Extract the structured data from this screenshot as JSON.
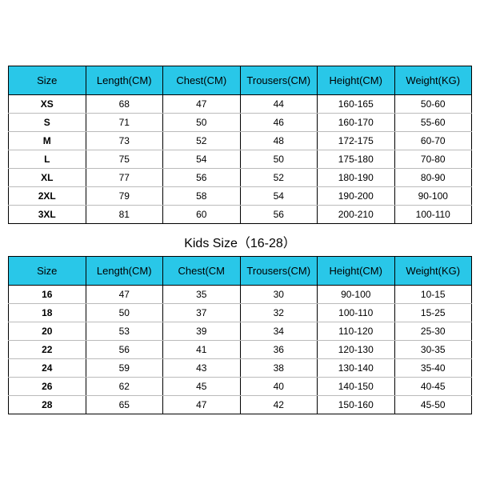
{
  "style": {
    "header_bg": "#29c7e8",
    "header_text": "#000000",
    "border_color": "#000000",
    "row_border": "#bbbbbb",
    "body_text": "#000000",
    "header_fontsize": 13,
    "cell_fontsize": 12,
    "title_fontsize": 16
  },
  "adult": {
    "columns": [
      "Size",
      "Length(CM)",
      "Chest(CM)",
      "Trousers(CM)",
      "Height(CM)",
      "Weight(KG)"
    ],
    "rows": [
      [
        "XS",
        "68",
        "47",
        "44",
        "160-165",
        "50-60"
      ],
      [
        "S",
        "71",
        "50",
        "46",
        "160-170",
        "55-60"
      ],
      [
        "M",
        "73",
        "52",
        "48",
        "172-175",
        "60-70"
      ],
      [
        "L",
        "75",
        "54",
        "50",
        "175-180",
        "70-80"
      ],
      [
        "XL",
        "77",
        "56",
        "52",
        "180-190",
        "80-90"
      ],
      [
        "2XL",
        "79",
        "58",
        "54",
        "190-200",
        "90-100"
      ],
      [
        "3XL",
        "81",
        "60",
        "56",
        "200-210",
        "100-110"
      ]
    ]
  },
  "kids_title": "Kids Size（16-28）",
  "kids": {
    "columns": [
      "Size",
      "Length(CM)",
      "Chest(CM",
      "Trousers(CM)",
      "Height(CM)",
      "Weight(KG)"
    ],
    "rows": [
      [
        "16",
        "47",
        "35",
        "30",
        "90-100",
        "10-15"
      ],
      [
        "18",
        "50",
        "37",
        "32",
        "100-110",
        "15-25"
      ],
      [
        "20",
        "53",
        "39",
        "34",
        "110-120",
        "25-30"
      ],
      [
        "22",
        "56",
        "41",
        "36",
        "120-130",
        "30-35"
      ],
      [
        "24",
        "59",
        "43",
        "38",
        "130-140",
        "35-40"
      ],
      [
        "26",
        "62",
        "45",
        "40",
        "140-150",
        "40-45"
      ],
      [
        "28",
        "65",
        "47",
        "42",
        "150-160",
        "45-50"
      ]
    ]
  }
}
